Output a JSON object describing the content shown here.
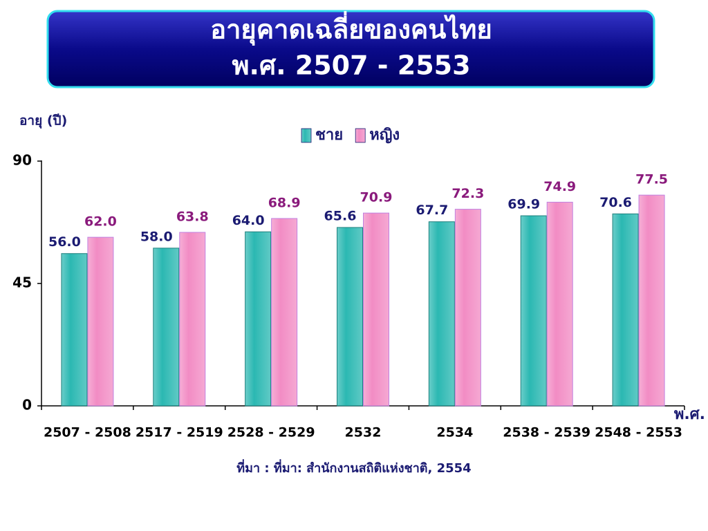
{
  "chart_data": {
    "type": "bar",
    "title": "อายุคาดเฉลี่ยของคนไทย",
    "subtitle": "พ.ศ. 2507 - 2553",
    "y_label": "อายุ (ปี)",
    "x_label": "พ.ศ.",
    "source": "ที่มา : ที่มา: สำนักงานสถิติแห่งชาติ, 2554",
    "categories": [
      "2507 - 2508",
      "2517 - 2519",
      "2528 - 2529",
      "2532",
      "2534",
      "2538 - 2539",
      "2548 - 2553"
    ],
    "series": [
      {
        "name": "ชาย",
        "color": "#2bb8b2",
        "label_color": "#1b1b72",
        "values": [
          56.0,
          58.0,
          64.0,
          65.6,
          67.7,
          69.9,
          70.6
        ],
        "value_labels": [
          "56.0",
          "58.0",
          "64.0",
          "65.6",
          "67.7",
          "69.9",
          "70.6"
        ]
      },
      {
        "name": "หญิง",
        "color": "#f28cc4",
        "label_color": "#8a1a7c",
        "values": [
          62.0,
          63.8,
          68.9,
          70.9,
          72.3,
          74.9,
          77.5
        ],
        "value_labels": [
          "62.0",
          "63.8",
          "68.9",
          "70.9",
          "72.3",
          "74.9",
          "77.5"
        ]
      }
    ],
    "ylim": [
      0,
      90
    ],
    "yticks": [
      0,
      45,
      90
    ],
    "grid": false
  }
}
